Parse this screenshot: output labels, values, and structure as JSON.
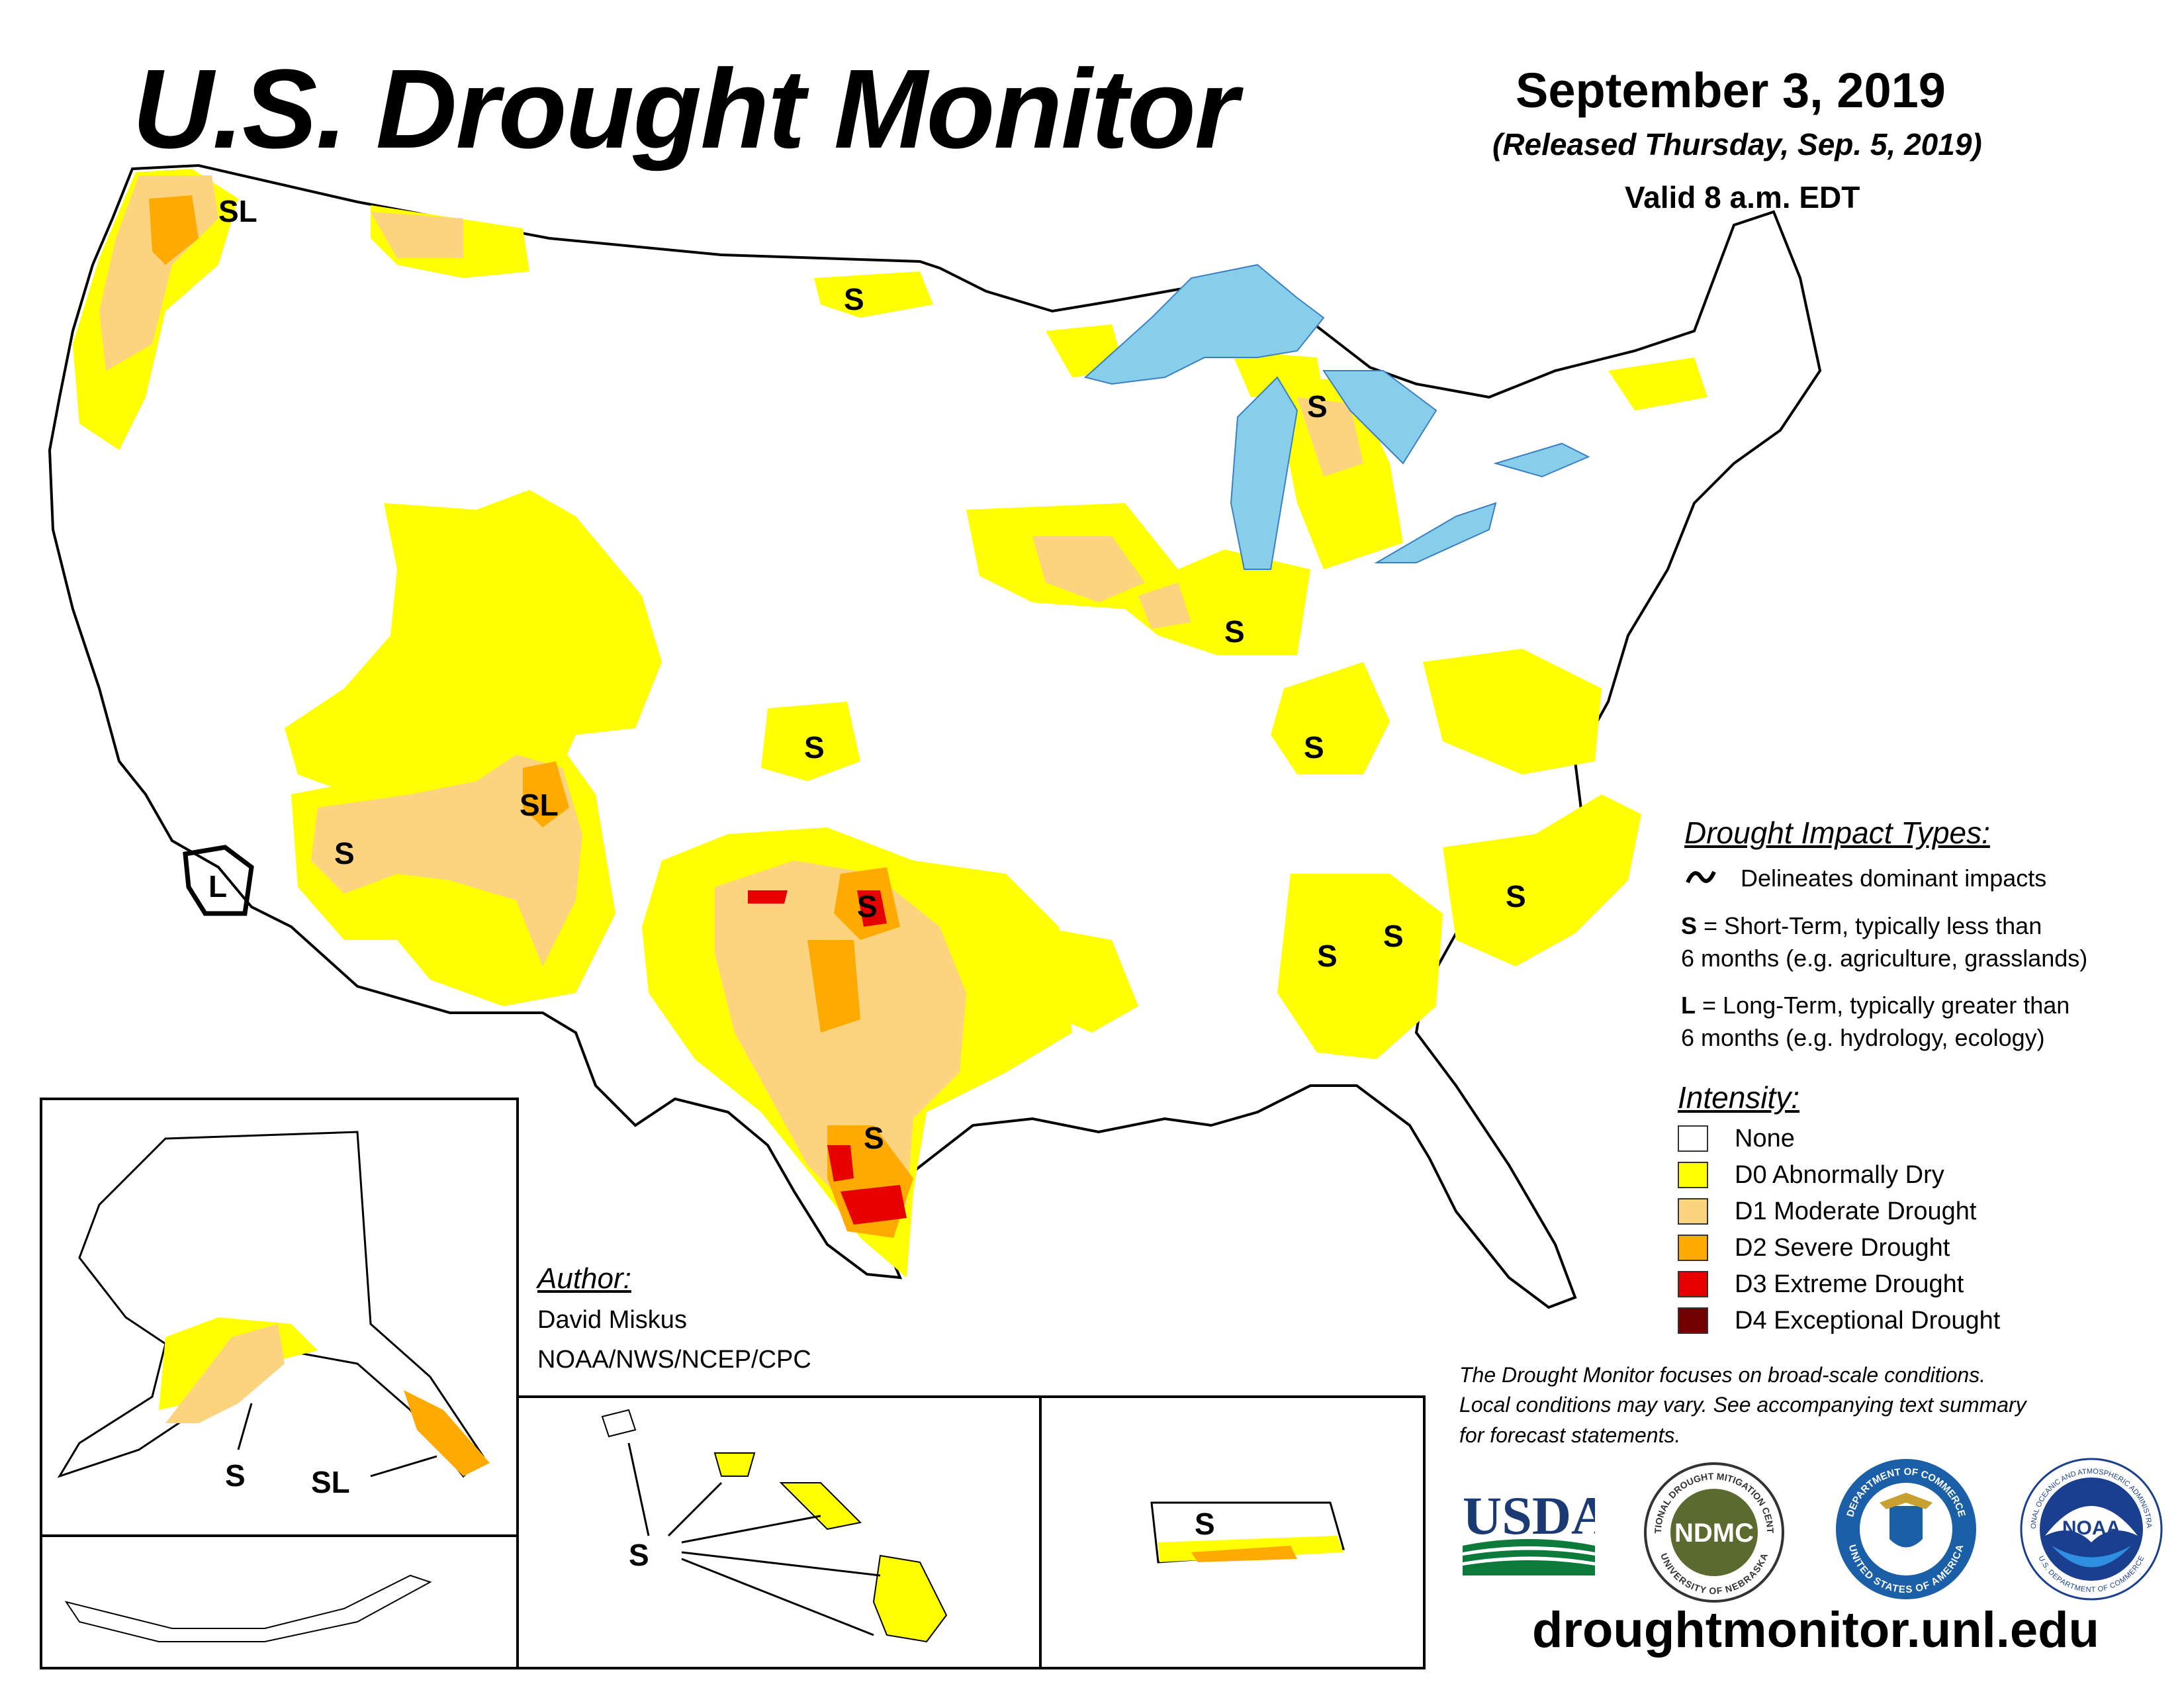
{
  "header": {
    "title": "U.S. Drought Monitor",
    "date": "September 3, 2019",
    "released": "(Released Thursday, Sep. 5, 2019)",
    "valid": "Valid 8 a.m. EDT"
  },
  "impact_legend": {
    "heading": "Drought Impact Types:",
    "delineates": "Delineates dominant impacts",
    "short_term_key": "S",
    "short_term_line1": "= Short-Term, typically less than",
    "short_term_line2": "6 months (e.g. agriculture, grasslands)",
    "long_term_key": "L",
    "long_term_line1": "= Long-Term, typically greater than",
    "long_term_line2": "6 months (e.g. hydrology, ecology)"
  },
  "intensity_legend": {
    "heading": "Intensity:",
    "items": [
      {
        "label": "None",
        "color": "#ffffff"
      },
      {
        "label": "D0 Abnormally Dry",
        "color": "#ffff00"
      },
      {
        "label": "D1 Moderate Drought",
        "color": "#fcd37f"
      },
      {
        "label": "D2 Severe Drought",
        "color": "#ffaa00"
      },
      {
        "label": "D3 Extreme Drought",
        "color": "#e60000"
      },
      {
        "label": "D4 Exceptional Drought",
        "color": "#730000"
      }
    ]
  },
  "author": {
    "heading": "Author:",
    "name": "David Miskus",
    "org": "NOAA/NWS/NCEP/CPC"
  },
  "disclaimer": {
    "line1": "The Drought Monitor focuses on broad-scale conditions.",
    "line2": "Local conditions may vary. See accompanying text summary",
    "line3": "for forecast statements."
  },
  "logos": {
    "usda": "USDA",
    "ndmc": "NDMC",
    "ndmc_ring_top": "NATIONAL DROUGHT MITIGATION CENTER",
    "ndmc_ring_bottom": "UNIVERSITY OF NEBRASKA",
    "doc_ring_top": "DEPARTMENT OF COMMERCE",
    "doc_ring_bottom": "UNITED STATES OF AMERICA",
    "noaa": "NOAA",
    "noaa_ring_top": "NATIONAL OCEANIC AND ATMOSPHERIC ADMINISTRATION",
    "noaa_ring_bottom": "U.S. DEPARTMENT OF COMMERCE"
  },
  "url": "droughtmonitor.unl.edu",
  "map_labels": {
    "sl_washington": "SL",
    "s_north_dakota": "S",
    "s_michigan": "S",
    "s_illinois": "S",
    "s_kentucky": "S",
    "s_kansas": "S",
    "sl_new_mexico": "SL",
    "s_arizona": "S",
    "l_california": "L",
    "s_oklahoma": "S",
    "s_texas": "S",
    "s_alabama": "S",
    "s_georgia": "S",
    "s_south_carolina": "S",
    "s_alaska": "S",
    "sl_alaska": "SL",
    "s_hawaii": "S",
    "s_puerto_rico": "S"
  }
}
